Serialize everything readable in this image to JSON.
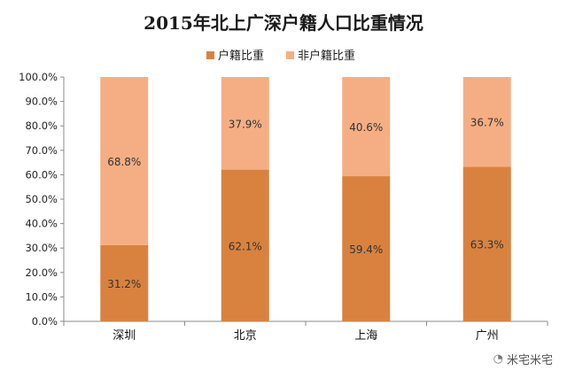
{
  "chart_data": {
    "type": "bar",
    "stacked": true,
    "title": "2015年北上广深户籍人口比重情况",
    "categories": [
      "深圳",
      "北京",
      "上海",
      "广州"
    ],
    "series": [
      {
        "name": "户籍比重",
        "color": "#d9823f",
        "values": [
          31.2,
          62.1,
          59.4,
          63.3
        ],
        "labels": [
          "31.2%",
          "62.1%",
          "59.4%",
          "63.3%"
        ]
      },
      {
        "name": "非户籍比重",
        "color": "#f5ae84",
        "values": [
          68.8,
          37.9,
          40.6,
          36.7
        ],
        "labels": [
          "68.8%",
          "37.9%",
          "40.6%",
          "36.7%"
        ]
      }
    ],
    "ylim": [
      0,
      100
    ],
    "yticks": [
      "0.0%",
      "10.0%",
      "20.0%",
      "30.0%",
      "40.0%",
      "50.0%",
      "60.0%",
      "70.0%",
      "80.0%",
      "90.0%",
      "100.0%"
    ],
    "legend_position": "top",
    "grid": false
  },
  "watermark": {
    "text": "米宅米宅",
    "icon": "wechat-icon"
  }
}
